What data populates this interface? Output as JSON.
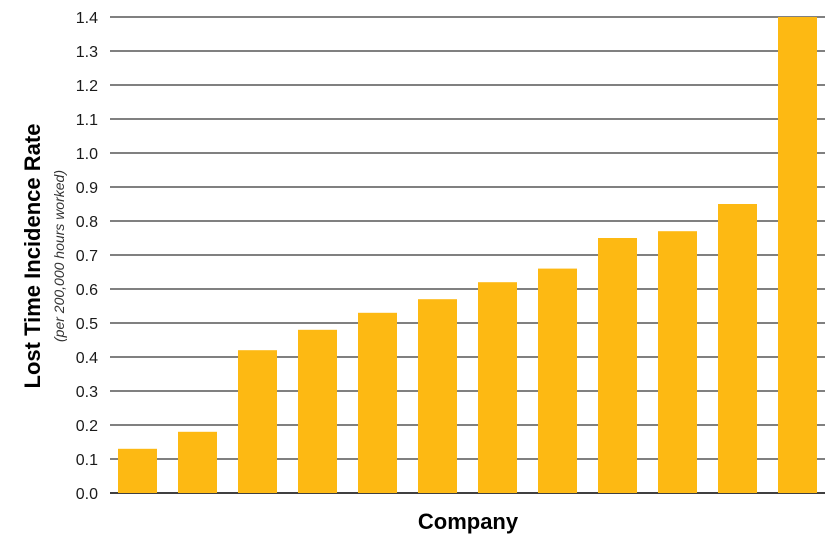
{
  "chart_data": {
    "type": "bar",
    "categories": [
      "",
      "",
      "",
      "",
      "",
      "",
      "",
      "",
      "",
      "",
      "",
      ""
    ],
    "values": [
      0.13,
      0.18,
      0.42,
      0.48,
      0.53,
      0.57,
      0.62,
      0.66,
      0.75,
      0.77,
      0.85,
      1.4
    ],
    "title": "",
    "xlabel": "Company",
    "ylabel": "Lost Time Incidence Rate",
    "ylabel_sub": "(per 200,000 hours worked)",
    "ylim": [
      0,
      1.4
    ],
    "yticks": [
      "0.0",
      "0.1",
      "0.2",
      "0.3",
      "0.4",
      "0.5",
      "0.6",
      "0.7",
      "0.8",
      "0.9",
      "1.0",
      "1.1",
      "1.2",
      "1.3",
      "1.4"
    ],
    "grid": true,
    "legend": "none",
    "bar_color": "#FDB913",
    "grid_color": "#000000"
  }
}
